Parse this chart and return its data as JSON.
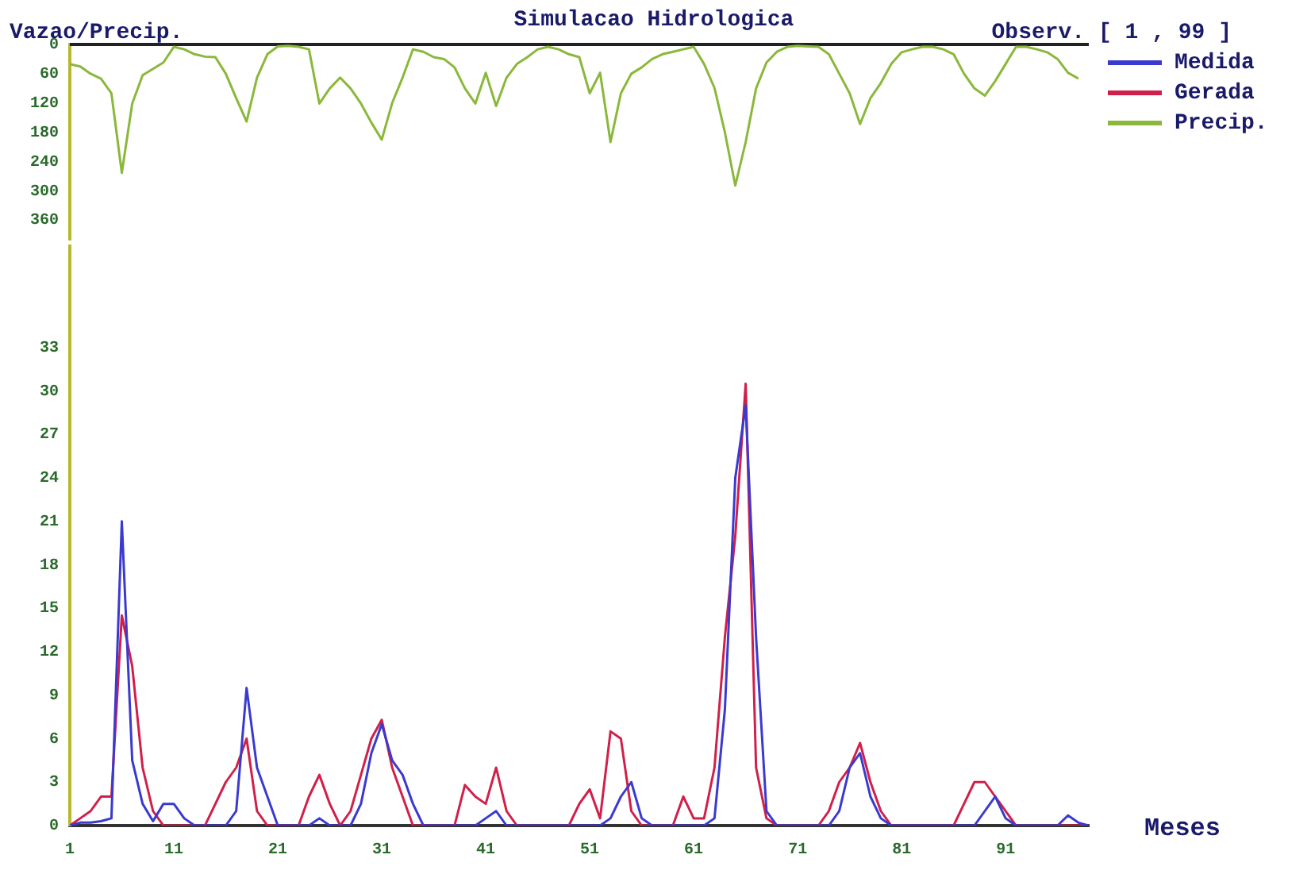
{
  "chart_data": [
    {
      "type": "line",
      "title": "Simulacao Hidrologica",
      "ylabel": "Vazao/Precip.",
      "annotations": [
        "Observ. [ 1 , 99 ]"
      ],
      "x": [
        1,
        2,
        3,
        4,
        5,
        6,
        7,
        8,
        9,
        10,
        11,
        12,
        13,
        14,
        15,
        16,
        17,
        18,
        19,
        20,
        21,
        22,
        23,
        24,
        25,
        26,
        27,
        28,
        29,
        30,
        31,
        32,
        33,
        34,
        35,
        36,
        37,
        38,
        39,
        40,
        41,
        42,
        43,
        44,
        45,
        46,
        47,
        48,
        49,
        50,
        51,
        52,
        53,
        54,
        55,
        56,
        57,
        58,
        59,
        60,
        61,
        62,
        63,
        64,
        65,
        66,
        67,
        68,
        69,
        70,
        71,
        72,
        73,
        74,
        75,
        76,
        77,
        78,
        79,
        80,
        81,
        82,
        83,
        84,
        85,
        86,
        87,
        88,
        89,
        90,
        91,
        92,
        93,
        94,
        95,
        96,
        97,
        98
      ],
      "series": [
        {
          "name": "Precip.",
          "color": "#8ab83a",
          "values": [
            40,
            45,
            60,
            70,
            100,
            263,
            121,
            63,
            50,
            37,
            5,
            10,
            20,
            25,
            26,
            60,
            110,
            158,
            68,
            20,
            4,
            3,
            5,
            10,
            121,
            90,
            68,
            90,
            121,
            160,
            195,
            120,
            68,
            10,
            15,
            26,
            30,
            47,
            90,
            121,
            58,
            126,
            68,
            40,
            26,
            10,
            5,
            10,
            20,
            26,
            100,
            58,
            200,
            100,
            60,
            47,
            30,
            20,
            15,
            10,
            5,
            40,
            89,
            180,
            289,
            200,
            90,
            37,
            15,
            5,
            3,
            4,
            5,
            20,
            60,
            100,
            163,
            110,
            79,
            40,
            16,
            10,
            5,
            5,
            10,
            20,
            60,
            90,
            105,
            75,
            40,
            5,
            5,
            10,
            16,
            30,
            58,
            70
          ]
        }
      ],
      "xlim": [
        1,
        99
      ],
      "ylim": [
        400,
        0
      ],
      "yticks": [
        0,
        60,
        120,
        180,
        240,
        300,
        360
      ],
      "tick_labels": "y",
      "legend": "top right",
      "marker": "none",
      "line_style": "solid"
    },
    {
      "type": "line",
      "xlabel": "Meses",
      "x": [
        1,
        2,
        3,
        4,
        5,
        6,
        7,
        8,
        9,
        10,
        11,
        12,
        13,
        14,
        15,
        16,
        17,
        18,
        19,
        20,
        21,
        22,
        23,
        24,
        25,
        26,
        27,
        28,
        29,
        30,
        31,
        32,
        33,
        34,
        35,
        36,
        37,
        38,
        39,
        40,
        41,
        42,
        43,
        44,
        45,
        46,
        47,
        48,
        49,
        50,
        51,
        52,
        53,
        54,
        55,
        56,
        57,
        58,
        59,
        60,
        61,
        62,
        63,
        64,
        65,
        66,
        67,
        68,
        69,
        70,
        71,
        72,
        73,
        74,
        75,
        76,
        77,
        78,
        79,
        80,
        81,
        82,
        83,
        84,
        85,
        86,
        87,
        88,
        89,
        90,
        91,
        92,
        93,
        94,
        95,
        96,
        97,
        98,
        99
      ],
      "series": [
        {
          "name": "Medida",
          "color": "#3a3ad0",
          "values": [
            0,
            0.2,
            0.2,
            0.3,
            0.5,
            21,
            4.5,
            1.5,
            0.3,
            1.5,
            1.5,
            0.5,
            0,
            0,
            0,
            0,
            1,
            9.5,
            4,
            2,
            0,
            0,
            0,
            0,
            0.5,
            0,
            0,
            0,
            1.5,
            5,
            7,
            4.5,
            3.5,
            1.5,
            0,
            0,
            0,
            0,
            0,
            0,
            0.5,
            1,
            0,
            0,
            0,
            0,
            0,
            0,
            0,
            0,
            0,
            0,
            0.5,
            2,
            3,
            0.5,
            0,
            0,
            0,
            0,
            0,
            0,
            0.5,
            8,
            24,
            29,
            13,
            1,
            0,
            0,
            0,
            0,
            0,
            0,
            1,
            4,
            5,
            2,
            0.5,
            0,
            0,
            0,
            0,
            0,
            0,
            0,
            0,
            0,
            1,
            2,
            0.5,
            0,
            0,
            0,
            0,
            0,
            0.7,
            0.2,
            0
          ]
        },
        {
          "name": "Gerada",
          "color": "#d0204a",
          "values": [
            0,
            0.5,
            1,
            2,
            2,
            14.5,
            11,
            4,
            1,
            0,
            0,
            0,
            0,
            0,
            1.5,
            3,
            4,
            6,
            1,
            0,
            0,
            0,
            0,
            2,
            3.5,
            1.5,
            0,
            1,
            3.5,
            6,
            7.3,
            4,
            2,
            0,
            0,
            0,
            0,
            0,
            2.8,
            2,
            1.5,
            4,
            1,
            0,
            0,
            0,
            0,
            0,
            0,
            1.5,
            2.5,
            0.5,
            6.5,
            6,
            1,
            0,
            0,
            0,
            0,
            2,
            0.5,
            0.5,
            4,
            13,
            20,
            30.5,
            4,
            0.5,
            0,
            0,
            0,
            0,
            0,
            1,
            3,
            4,
            5.7,
            3,
            1,
            0,
            0,
            0,
            0,
            0,
            0,
            0,
            1.5,
            3,
            3,
            2,
            1,
            0,
            0,
            0,
            0,
            0,
            0,
            0,
            0
          ]
        }
      ],
      "xlim": [
        1,
        99
      ],
      "xticks": [
        1,
        11,
        21,
        31,
        41,
        51,
        61,
        71,
        81,
        91
      ],
      "ylim": [
        0,
        40
      ],
      "yticks": [
        0,
        3,
        6,
        9,
        12,
        15,
        18,
        21,
        24,
        27,
        30,
        33
      ],
      "legend": "top right",
      "marker": "none",
      "line_style": "solid"
    }
  ]
}
